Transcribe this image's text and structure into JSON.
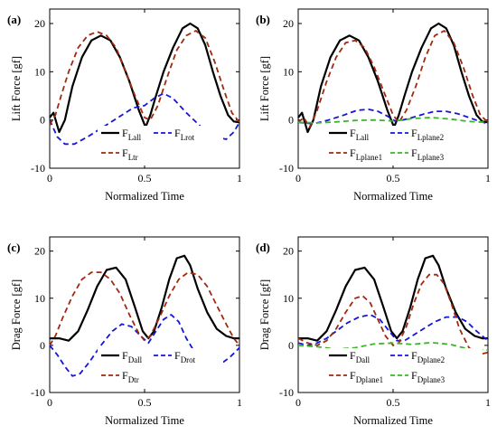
{
  "chart_data": [
    {
      "type": "line",
      "panel": "(a)",
      "xlabel": "Normalized Time",
      "ylabel": "Lift Force [gf]",
      "xlim": [
        0,
        1
      ],
      "ylim": [
        -10,
        23
      ],
      "xticks": [
        0,
        0.5,
        1
      ],
      "xtick_labels": [
        "0",
        "0.5",
        "1"
      ],
      "yticks": [
        -10,
        0,
        10,
        20
      ],
      "ytick_labels": [
        "-10",
        "0",
        "10",
        "20"
      ],
      "legend": {
        "placement": "bottom-center",
        "columns": 2
      },
      "series": [
        {
          "name": "F",
          "sub": "Lall",
          "color": "#000000",
          "dash": "solid",
          "x": [
            0,
            0.02,
            0.05,
            0.08,
            0.12,
            0.17,
            0.22,
            0.27,
            0.32,
            0.37,
            0.42,
            0.47,
            0.505,
            0.53,
            0.56,
            0.6,
            0.65,
            0.7,
            0.74,
            0.78,
            0.82,
            0.86,
            0.9,
            0.94,
            0.97,
            1
          ],
          "y": [
            0.5,
            1.5,
            -2.5,
            0,
            7,
            13,
            16.5,
            17.5,
            16.5,
            13,
            8,
            2,
            -1.5,
            1,
            5,
            10,
            15,
            19,
            20,
            19,
            15.5,
            10,
            5,
            1,
            -0.3,
            -0.5
          ]
        },
        {
          "name": "F",
          "sub": "Lrot",
          "color": "#1515d6",
          "dash": "dashed",
          "x": [
            0,
            0.04,
            0.08,
            0.13,
            0.2,
            0.28,
            0.36,
            0.44,
            0.5,
            0.55,
            0.6,
            0.65,
            0.72,
            0.8,
            0.87,
            0.93,
            0.97,
            1
          ],
          "y": [
            0,
            -3.5,
            -5,
            -5,
            -3.5,
            -1.5,
            0.5,
            2.5,
            3,
            4.5,
            5.5,
            4.5,
            1.5,
            -1.5,
            -3.5,
            -4,
            -2.5,
            -0.5
          ]
        },
        {
          "name": "F",
          "sub": "Ltr",
          "color": "#a0290f",
          "dash": "dashed",
          "x": [
            0,
            0.03,
            0.06,
            0.1,
            0.15,
            0.2,
            0.25,
            0.3,
            0.35,
            0.4,
            0.45,
            0.5,
            0.53,
            0.57,
            0.62,
            0.67,
            0.72,
            0.77,
            0.82,
            0.87,
            0.92,
            0.96,
            1
          ],
          "y": [
            -1,
            1,
            5,
            10,
            15,
            17.5,
            18.3,
            17.5,
            15,
            10,
            5,
            0.5,
            0,
            3,
            9,
            14.5,
            17.5,
            18.5,
            17,
            12,
            6,
            1.5,
            -0.5
          ]
        }
      ]
    },
    {
      "type": "line",
      "panel": "(b)",
      "xlabel": "Normalized Time",
      "ylabel": "Lift Force [gf]",
      "xlim": [
        0,
        1
      ],
      "ylim": [
        -10,
        23
      ],
      "xticks": [
        0,
        0.5,
        1
      ],
      "xtick_labels": [
        "0",
        "0.5",
        "1"
      ],
      "yticks": [
        -10,
        0,
        10,
        20
      ],
      "ytick_labels": [
        "-10",
        "0",
        "10",
        "20"
      ],
      "legend": {
        "placement": "bottom-center",
        "columns": 2
      },
      "series": [
        {
          "name": "F",
          "sub": "Lall",
          "color": "#000000",
          "dash": "solid",
          "x": [
            0,
            0.02,
            0.05,
            0.08,
            0.12,
            0.17,
            0.22,
            0.27,
            0.32,
            0.37,
            0.42,
            0.47,
            0.505,
            0.53,
            0.56,
            0.6,
            0.65,
            0.7,
            0.74,
            0.78,
            0.82,
            0.86,
            0.9,
            0.94,
            0.97,
            1
          ],
          "y": [
            0.5,
            1.5,
            -2.5,
            0,
            7,
            13,
            16.5,
            17.5,
            16.5,
            13,
            8,
            2,
            -1.5,
            1,
            5,
            10,
            15,
            19,
            20,
            19,
            15.5,
            10,
            5,
            1,
            -0.3,
            -0.5
          ]
        },
        {
          "name": "F",
          "sub": "Lplane2",
          "color": "#1515d6",
          "dash": "dashed",
          "x": [
            0,
            0.08,
            0.16,
            0.24,
            0.31,
            0.37,
            0.42,
            0.47,
            0.51,
            0.55,
            0.6,
            0.66,
            0.72,
            0.78,
            0.84,
            0.9,
            0.95,
            1
          ],
          "y": [
            -0.5,
            -0.8,
            0,
            1,
            2,
            2.2,
            1.8,
            0.8,
            -0.2,
            0,
            0.5,
            1.2,
            1.8,
            1.8,
            1.3,
            0.5,
            -0.2,
            -0.8
          ]
        },
        {
          "name": "F",
          "sub": "Lplane1",
          "color": "#a0290f",
          "dash": "dashed",
          "x": [
            0,
            0.03,
            0.06,
            0.1,
            0.15,
            0.2,
            0.25,
            0.3,
            0.35,
            0.4,
            0.45,
            0.5,
            0.53,
            0.57,
            0.62,
            0.67,
            0.72,
            0.77,
            0.82,
            0.87,
            0.92,
            0.96,
            1
          ],
          "y": [
            -0.5,
            0.5,
            -1.5,
            2,
            8,
            13,
            16,
            16.5,
            15,
            11,
            6,
            1,
            -0.5,
            2,
            7,
            13,
            17.5,
            18.5,
            16,
            11,
            5,
            1,
            -0.5
          ]
        },
        {
          "name": "F",
          "sub": "Lplane3",
          "color": "#3cb52a",
          "dash": "dashed",
          "x": [
            0,
            0.1,
            0.2,
            0.3,
            0.4,
            0.5,
            0.55,
            0.6,
            0.7,
            0.8,
            0.9,
            1
          ],
          "y": [
            -0.5,
            -0.6,
            -0.4,
            -0.1,
            0,
            -0.2,
            0,
            0.3,
            0.5,
            0.2,
            -0.3,
            -0.5
          ]
        }
      ]
    },
    {
      "type": "line",
      "panel": "(c)",
      "xlabel": "Normalized Time",
      "ylabel": "Drag Force [gf]",
      "xlim": [
        0,
        1
      ],
      "ylim": [
        -10,
        23
      ],
      "xticks": [
        0,
        0.5,
        1
      ],
      "xtick_labels": [
        "0",
        "0.5",
        "1"
      ],
      "yticks": [
        -10,
        0,
        10,
        20
      ],
      "ytick_labels": [
        "-10",
        "0",
        "10",
        "20"
      ],
      "legend": {
        "placement": "bottom-center",
        "columns": 2
      },
      "series": [
        {
          "name": "F",
          "sub": "Dall",
          "color": "#000000",
          "dash": "solid",
          "x": [
            0,
            0.05,
            0.1,
            0.15,
            0.2,
            0.25,
            0.3,
            0.35,
            0.4,
            0.45,
            0.49,
            0.52,
            0.55,
            0.59,
            0.63,
            0.67,
            0.71,
            0.74,
            0.78,
            0.83,
            0.88,
            0.93,
            0.97,
            1
          ],
          "y": [
            1.5,
            1.5,
            1,
            3,
            7.5,
            12.5,
            16,
            16.5,
            14,
            8,
            3,
            1.5,
            3,
            8,
            14,
            18.5,
            19,
            17,
            12,
            7,
            3.5,
            2,
            1.5,
            1.5
          ]
        },
        {
          "name": "F",
          "sub": "Drot",
          "color": "#1515d6",
          "dash": "dashed",
          "x": [
            0,
            0.04,
            0.08,
            0.12,
            0.16,
            0.21,
            0.27,
            0.33,
            0.38,
            0.43,
            0.48,
            0.52,
            0.56,
            0.6,
            0.64,
            0.68,
            0.72,
            0.78,
            0.84,
            0.9,
            0.95,
            1
          ],
          "y": [
            0,
            -2,
            -4.5,
            -6.5,
            -6,
            -3.5,
            0,
            3,
            4.5,
            4,
            2,
            0.5,
            3,
            5.5,
            6.5,
            5,
            1.5,
            -2.5,
            -4.5,
            -4,
            -2.5,
            -0.5
          ]
        },
        {
          "name": "F",
          "sub": "Dtr",
          "color": "#a0290f",
          "dash": "dashed",
          "x": [
            0,
            0.03,
            0.07,
            0.12,
            0.17,
            0.22,
            0.27,
            0.32,
            0.37,
            0.42,
            0.47,
            0.5,
            0.53,
            0.58,
            0.63,
            0.68,
            0.73,
            0.78,
            0.83,
            0.88,
            0.93,
            0.97,
            1
          ],
          "y": [
            0,
            2,
            6,
            10.5,
            14,
            15.5,
            15.5,
            14,
            11,
            6.5,
            2.5,
            1,
            2,
            6,
            10.5,
            14,
            15.5,
            15,
            12.5,
            8.5,
            4.5,
            1.5,
            0
          ]
        }
      ]
    },
    {
      "type": "line",
      "panel": "(d)",
      "xlabel": "Normalized Time",
      "ylabel": "Drag Force [gf]",
      "xlim": [
        0,
        1
      ],
      "ylim": [
        -10,
        23
      ],
      "xticks": [
        0,
        0.5,
        1
      ],
      "xtick_labels": [
        "0",
        "0.5",
        "1"
      ],
      "yticks": [
        -10,
        0,
        10,
        20
      ],
      "ytick_labels": [
        "-10",
        "0",
        "10",
        "20"
      ],
      "legend": {
        "placement": "bottom-center",
        "columns": 2
      },
      "series": [
        {
          "name": "F",
          "sub": "Dall",
          "color": "#000000",
          "dash": "solid",
          "x": [
            0,
            0.05,
            0.1,
            0.15,
            0.2,
            0.25,
            0.3,
            0.35,
            0.4,
            0.45,
            0.49,
            0.52,
            0.55,
            0.59,
            0.63,
            0.67,
            0.71,
            0.74,
            0.78,
            0.83,
            0.88,
            0.93,
            0.97,
            1
          ],
          "y": [
            1.5,
            1.5,
            1,
            3,
            7.5,
            12.5,
            16,
            16.5,
            14,
            8,
            3,
            1.5,
            3,
            8,
            14,
            18.5,
            19,
            17,
            12,
            7,
            3.5,
            2,
            1.5,
            1.5
          ]
        },
        {
          "name": "F",
          "sub": "Dplane2",
          "color": "#1515d6",
          "dash": "dashed",
          "x": [
            0,
            0.05,
            0.1,
            0.15,
            0.2,
            0.26,
            0.32,
            0.38,
            0.43,
            0.48,
            0.52,
            0.56,
            0.6,
            0.66,
            0.72,
            0.78,
            0.84,
            0.89,
            0.94,
            1
          ],
          "y": [
            0.5,
            0,
            0.5,
            1.5,
            3,
            4.8,
            6,
            6.5,
            5.5,
            3,
            1,
            1,
            2,
            3.5,
            5,
            6,
            6,
            5,
            3,
            1
          ]
        },
        {
          "name": "F",
          "sub": "Dplane1",
          "color": "#a0290f",
          "dash": "dashed",
          "x": [
            0,
            0.05,
            0.1,
            0.15,
            0.2,
            0.25,
            0.3,
            0.34,
            0.38,
            0.42,
            0.46,
            0.5,
            0.53,
            0.57,
            0.61,
            0.65,
            0.69,
            0.73,
            0.77,
            0.81,
            0.85,
            0.9,
            0.95,
            1
          ],
          "y": [
            1.5,
            0.5,
            0,
            1,
            3.5,
            7,
            10,
            10.5,
            9,
            5.5,
            2,
            0,
            0.5,
            4,
            9,
            13,
            15,
            15,
            13,
            8.5,
            3.5,
            -0.5,
            -2,
            -1.5
          ]
        },
        {
          "name": "F",
          "sub": "Dplane3",
          "color": "#3cb52a",
          "dash": "dashed",
          "x": [
            0,
            0.1,
            0.2,
            0.3,
            0.4,
            0.5,
            0.6,
            0.7,
            0.8,
            0.9,
            1
          ],
          "y": [
            0,
            -0.3,
            -0.8,
            -0.5,
            0.3,
            0.5,
            0.2,
            0.6,
            0.2,
            -0.8,
            -1
          ]
        }
      ]
    }
  ]
}
